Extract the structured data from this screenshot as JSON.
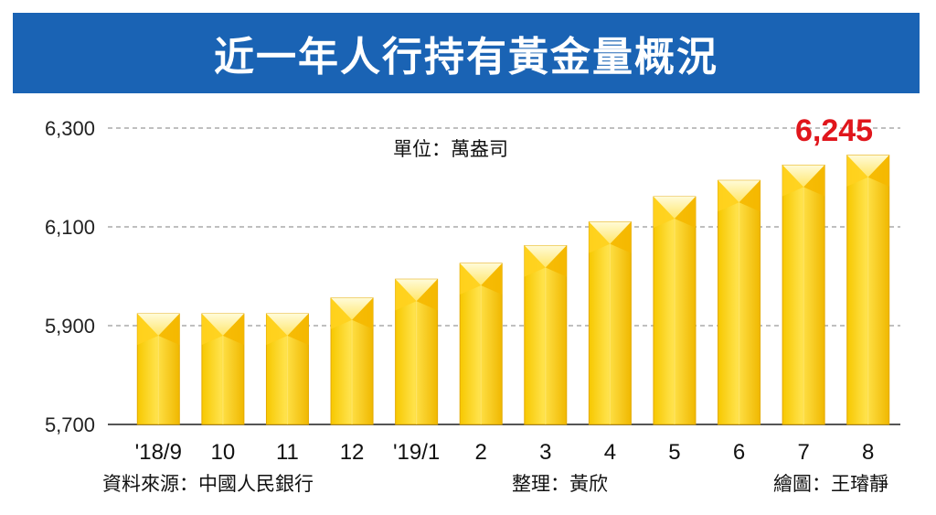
{
  "title": "近一年人行持有黃金量概況",
  "colors": {
    "banner": "#1a63b4",
    "bar_top": "#fff3a0",
    "bar_body": "#f2c200",
    "highlight": "#e0161c"
  },
  "chart_data": {
    "type": "bar",
    "title": "近一年人行持有黃金量概況",
    "unit": "單位：萬盎司",
    "categories": [
      "'18/9",
      "10",
      "11",
      "12",
      "'19/1",
      "2",
      "3",
      "4",
      "5",
      "6",
      "7",
      "8"
    ],
    "values": [
      5924,
      5924,
      5924,
      5956,
      5994,
      6026,
      6062,
      6110,
      6161,
      6194,
      6225,
      6245
    ],
    "ylim": [
      5700,
      6300
    ],
    "yticks": [
      "5,700",
      "5,900",
      "6,100",
      "6,300"
    ],
    "ytick_values": [
      5700,
      5900,
      6100,
      6300
    ],
    "highlight_label": "6,245",
    "grid": true
  },
  "footer": {
    "source": "資料來源：中國人民銀行",
    "editor": "整理：黃欣",
    "artist": "繪圖：王璿靜"
  }
}
